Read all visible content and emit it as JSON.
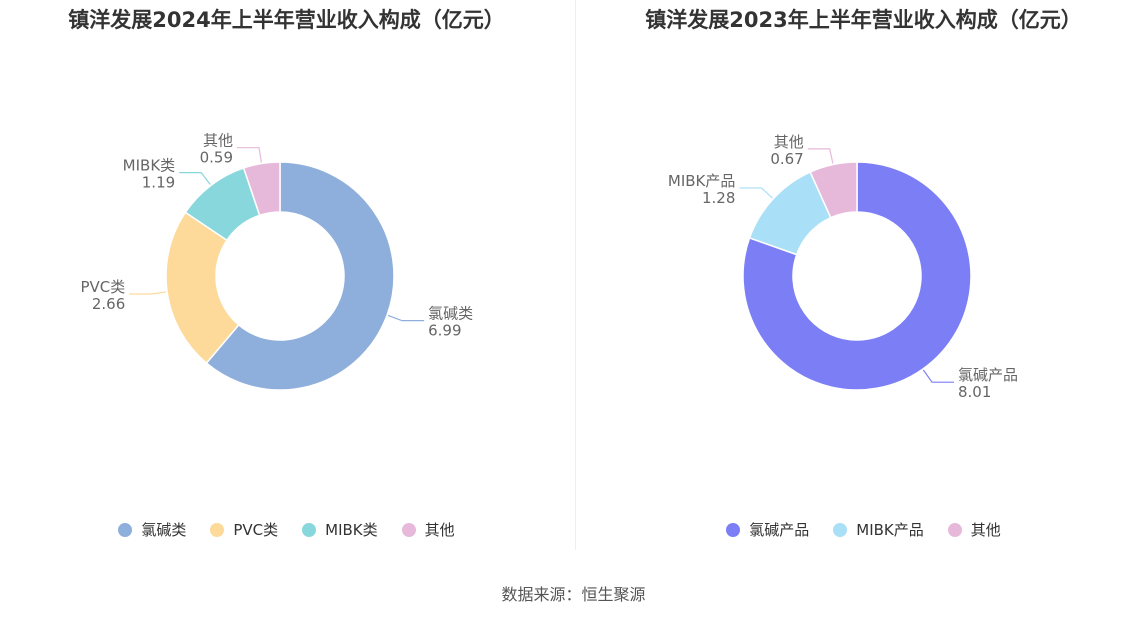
{
  "source": "数据来源：恒生聚源",
  "chart_data": [
    {
      "type": "pie",
      "title": "镇洋发展2024年上半年营业收入构成（亿元）",
      "categories": [
        "氯碱类",
        "PVC类",
        "MIBK类",
        "其他"
      ],
      "values": [
        6.99,
        2.66,
        1.19,
        0.59
      ],
      "value_labels": [
        "6.99",
        "2.66",
        "1.19",
        "0.59"
      ],
      "colors": [
        "#8eaedb",
        "#fdd99a",
        "#87d7dc",
        "#e6b9da"
      ],
      "legend_position": "bottom"
    },
    {
      "type": "pie",
      "title": "镇洋发展2023年上半年营业收入构成（亿元）",
      "categories": [
        "氯碱产品",
        "MIBK产品",
        "其他"
      ],
      "values": [
        8.01,
        1.28,
        0.67
      ],
      "value_labels": [
        "8.01",
        "1.28",
        "0.67"
      ],
      "colors": [
        "#7b7ef5",
        "#a9dff7",
        "#e6b9da"
      ],
      "legend_position": "bottom"
    }
  ]
}
